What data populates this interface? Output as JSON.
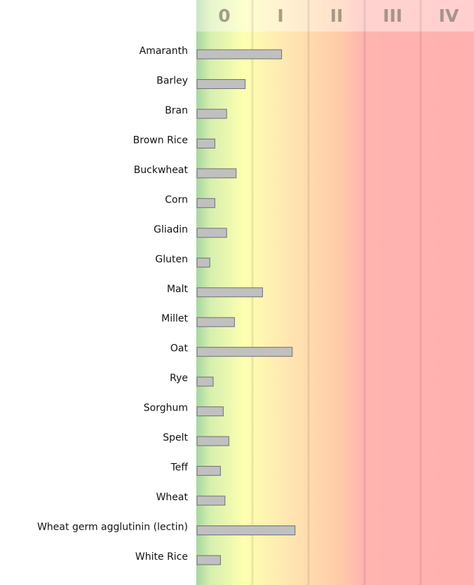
{
  "chart_data": {
    "type": "hbar",
    "categories": [
      "Amaranth",
      "Barley",
      "Bran",
      "Brown Rice",
      "Buckwheat",
      "Corn",
      "Gliadin",
      "Gluten",
      "Malt",
      "Millet",
      "Oat",
      "Rye",
      "Sorghum",
      "Spelt",
      "Teff",
      "Wheat",
      "Wheat germ agglutinin (lectin)",
      "White Rice"
    ],
    "values": [
      1.52,
      0.87,
      0.54,
      0.33,
      0.71,
      0.33,
      0.54,
      0.24,
      1.18,
      0.68,
      1.71,
      0.3,
      0.48,
      0.58,
      0.43,
      0.51,
      1.76,
      0.43
    ],
    "color": "#c0c0c0",
    "xlim": [
      0,
      5
    ],
    "xticks": [
      {
        "value": 0.5,
        "label": "0"
      },
      {
        "value": 1.5,
        "label": "I"
      },
      {
        "value": 2.5,
        "label": "II"
      },
      {
        "value": 3.5,
        "label": "III"
      },
      {
        "value": 4.5,
        "label": "IV"
      }
    ]
  }
}
